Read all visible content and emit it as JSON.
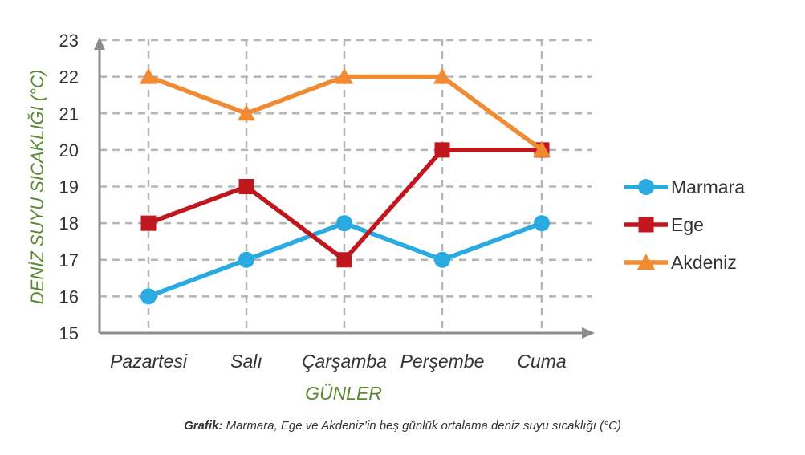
{
  "chart_data": {
    "type": "line",
    "xlabel": "GÜNLER",
    "ylabel": "DENİZ SUYU SICAKLIĞI (°C)",
    "categories": [
      "Pazartesi",
      "Salı",
      "Çarşamba",
      "Perşembe",
      "Cuma"
    ],
    "ylim": [
      15,
      23
    ],
    "yticks": [
      15,
      16,
      17,
      18,
      19,
      20,
      21,
      22,
      23
    ],
    "grid": true,
    "legend_position": "right",
    "series": [
      {
        "name": "Marmara",
        "values": [
          16,
          17,
          18,
          17,
          18
        ],
        "color": "#29abe2",
        "marker": "circle"
      },
      {
        "name": "Ege",
        "values": [
          18,
          19,
          17,
          20,
          20
        ],
        "color": "#c0171f",
        "marker": "square"
      },
      {
        "name": "Akdeniz",
        "values": [
          22,
          21,
          22,
          22,
          20
        ],
        "color": "#f08a33",
        "marker": "triangle"
      }
    ]
  },
  "caption": {
    "label": "Grafik:",
    "text": " Marmara, Ege ve Akdeniz’in beş günlük ortalama deniz suyu sıcaklığı (°C)"
  },
  "colors": {
    "axis": "#8c8c8c",
    "grid": "#b5b5b5",
    "axis_title": "#5b8a32"
  }
}
